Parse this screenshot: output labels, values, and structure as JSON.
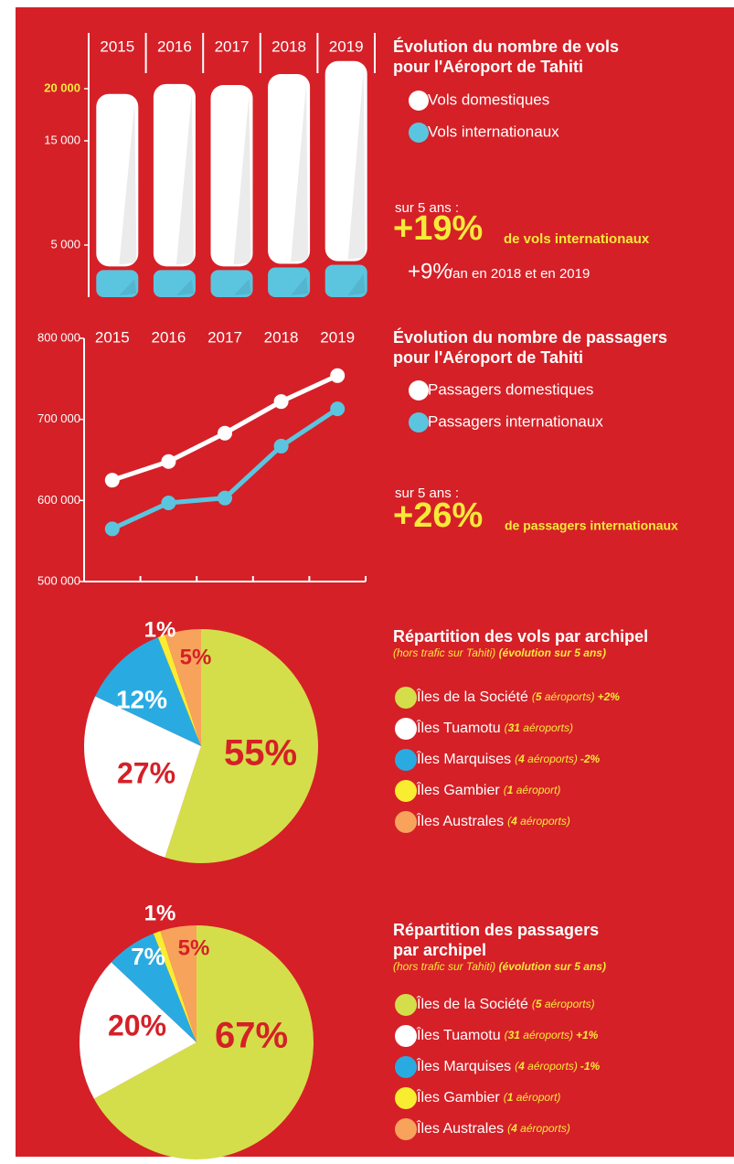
{
  "chart_data": [
    {
      "type": "bar",
      "title": [
        "Évolution du nombre de vols",
        "pour l'Aéroport de Tahiti"
      ],
      "categories": [
        "2015",
        "2016",
        "2017",
        "2018",
        "2019"
      ],
      "series": [
        {
          "name": "Vols domestiques",
          "color": "#ffffff",
          "values": [
            16900,
            17850,
            17750,
            18550,
            19550
          ]
        },
        {
          "name": "Vols internationaux",
          "color": "#5bc5e0",
          "values": [
            2600,
            2600,
            2600,
            2850,
            3100
          ]
        }
      ],
      "ylim": [
        0,
        25000
      ],
      "yticks": [
        {
          "value": 5000,
          "label": "5 000"
        },
        {
          "value": 15000,
          "label": "15 000"
        },
        {
          "value": 20000,
          "label": "20 000",
          "color": "#f7e93a"
        }
      ],
      "annotations": [
        "sur 5 ans :",
        "+19%",
        "de vols internationaux",
        "+9%",
        "/an en 2018 et en 2019"
      ]
    },
    {
      "type": "line",
      "title": [
        "Évolution du nombre de passagers",
        "pour l'Aéroport de Tahiti"
      ],
      "categories": [
        "2015",
        "2016",
        "2017",
        "2018",
        "2019"
      ],
      "series": [
        {
          "name": "Passagers domestiques",
          "color": "#ffffff",
          "values": [
            625000,
            648000,
            683000,
            722000,
            754000
          ]
        },
        {
          "name": "Passagers internationaux",
          "color": "#5bc5e0",
          "values": [
            565000,
            597000,
            603000,
            667000,
            713000
          ]
        }
      ],
      "ylim": [
        500000,
        800000
      ],
      "yticks": [
        {
          "value": 500000,
          "label": "500 000"
        },
        {
          "value": 600000,
          "label": "600 000"
        },
        {
          "value": 700000,
          "label": "700 000"
        },
        {
          "value": 800000,
          "label": "800 000"
        }
      ],
      "annotations": [
        "sur 5 ans :",
        "+26%",
        "de passagers internationaux"
      ]
    },
    {
      "type": "pie",
      "title": [
        "Répartition des vols par archipel"
      ],
      "subtitle": [
        "(hors trafic sur Tahiti) ",
        "(évolution sur 5 ans)"
      ],
      "categories": [
        "Îles de la Société",
        "Îles Tuamotu",
        "Îles Marquises",
        "Îles Gambier",
        "Îles Australes"
      ],
      "details": [
        "(5 aéroports)",
        "(31 aéroports)",
        "(4 aéroports)",
        "(1 aéroport)",
        "(4 aéroports)"
      ],
      "changes": [
        "+2%",
        null,
        "-2%",
        null,
        null
      ],
      "values": [
        55,
        27,
        12,
        1,
        5
      ],
      "value_labels": [
        "55%",
        "27%",
        "12%",
        "1%",
        "5%"
      ],
      "colors": [
        "#d4de4a",
        "#ffffff",
        "#29abe2",
        "#f9ed32",
        "#f7a35c"
      ]
    },
    {
      "type": "pie",
      "title": [
        "Répartition des passagers",
        "par archipel"
      ],
      "subtitle": [
        "(hors trafic sur Tahiti) ",
        "(évolution sur 5 ans)"
      ],
      "categories": [
        "Îles de la Société",
        "Îles Tuamotu",
        "Îles Marquises",
        "Îles Gambier",
        "Îles Australes"
      ],
      "details": [
        "(5 aéroports)",
        "(31 aéroports)",
        "(4 aéroports)",
        "(1 aéroport)",
        "(4 aéroports)"
      ],
      "changes": [
        null,
        "+1%",
        "-1%",
        null,
        null
      ],
      "values": [
        67,
        20,
        7,
        1,
        5
      ],
      "value_labels": [
        "67%",
        "20%",
        "7%",
        "1%",
        "5%"
      ],
      "colors": [
        "#d4de4a",
        "#ffffff",
        "#29abe2",
        "#f9ed32",
        "#f7a35c"
      ]
    }
  ]
}
